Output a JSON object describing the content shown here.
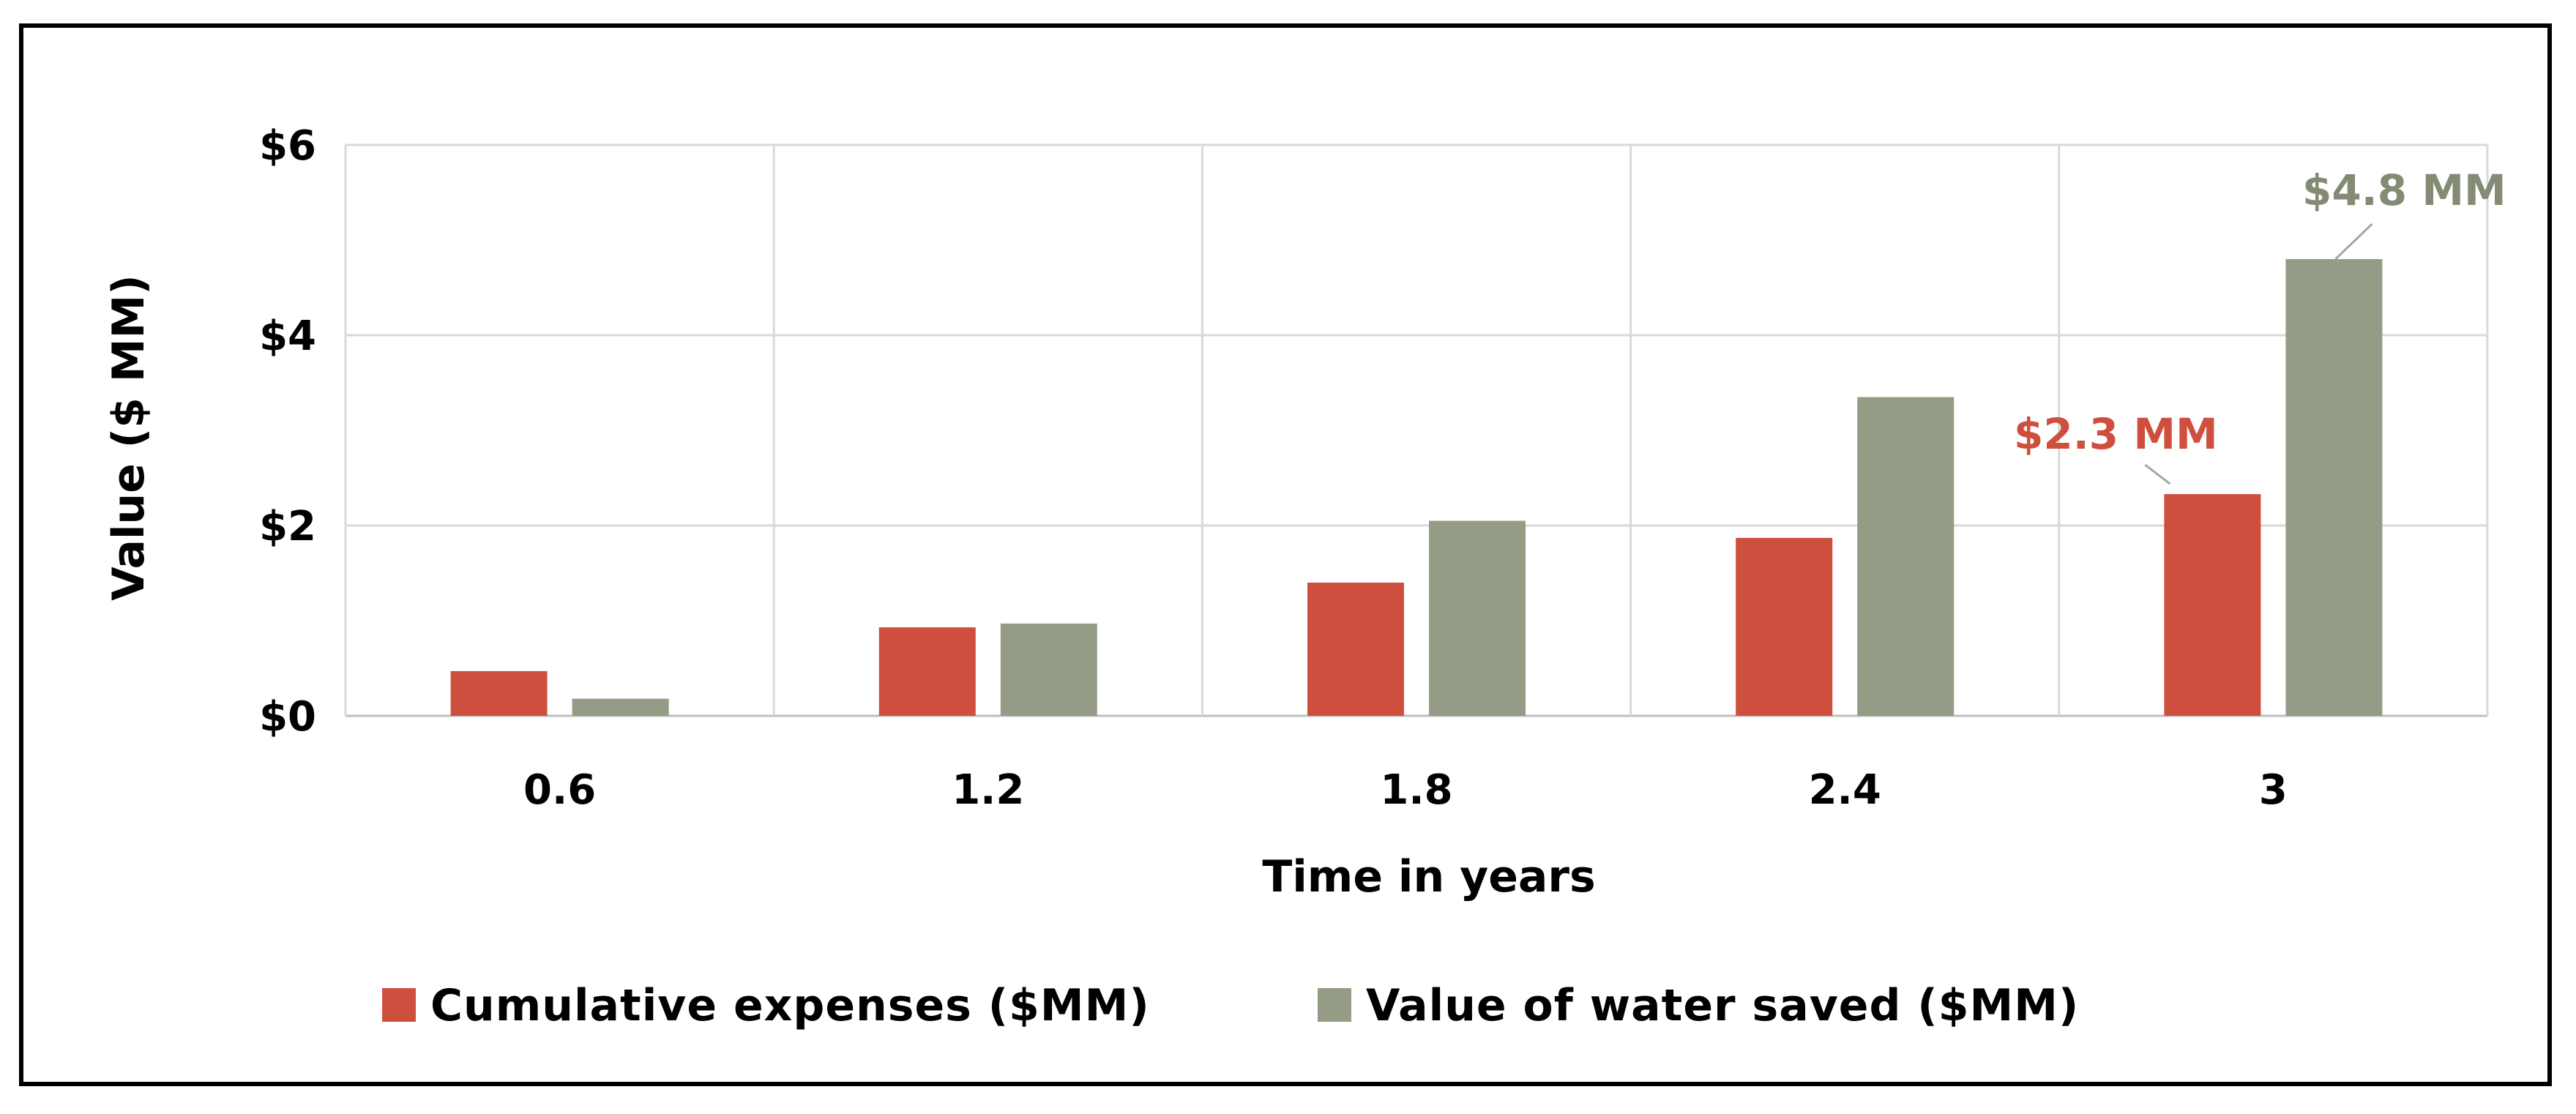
{
  "chart_data": {
    "type": "bar",
    "categories": [
      "0.6",
      "1.2",
      "1.8",
      "2.4",
      "3"
    ],
    "series": [
      {
        "name": "Cumulative expenses ($MM)",
        "color": "#cf4f3f",
        "values": [
          0.47,
          0.93,
          1.4,
          1.87,
          2.33
        ]
      },
      {
        "name": "Value of water saved ($MM)",
        "color": "#959c86",
        "values": [
          0.18,
          0.97,
          2.05,
          3.35,
          4.8
        ]
      }
    ],
    "title": "",
    "xlabel": "Time in years",
    "ylabel": "Value ($ MM)",
    "ylim": [
      0,
      6
    ],
    "yticks": [
      0,
      2,
      4,
      6
    ],
    "ytick_labels": [
      "$0",
      "$2",
      "$4",
      "$6"
    ],
    "grid": true,
    "legend_position": "bottom",
    "annotations": [
      {
        "text": "$2.3 MM",
        "series": 0,
        "category": "3",
        "color": "#cf4f3f"
      },
      {
        "text": "$4.8 MM",
        "series": 1,
        "category": "3",
        "color": "#838b75"
      }
    ]
  }
}
